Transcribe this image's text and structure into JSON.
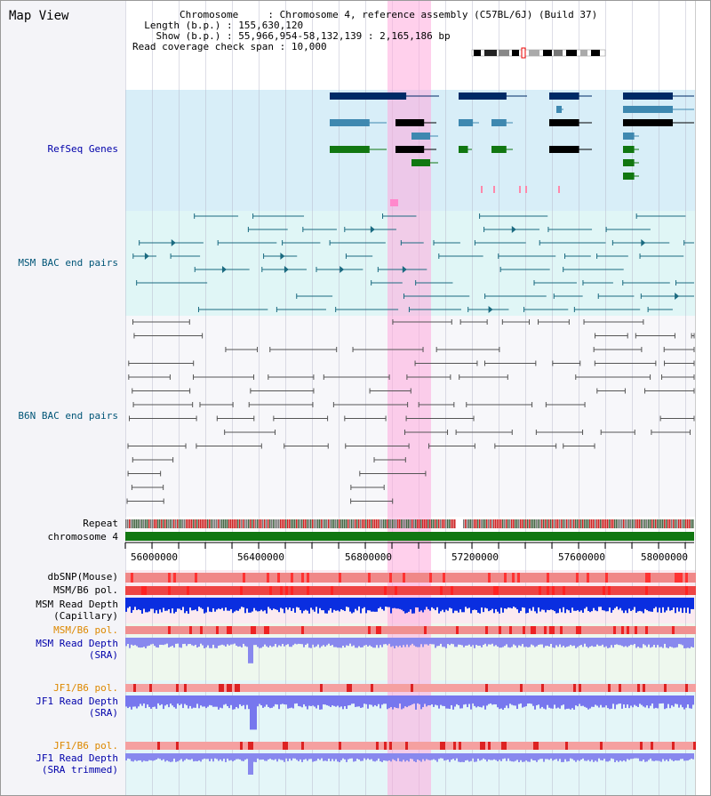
{
  "view": {
    "title": "Map View",
    "info": {
      "chromosome_label": "Chromosome",
      "chromosome_value": "Chromosome 4, reference assembly (C57BL/6J) (Build 37)",
      "length_label": "Length (b.p.)",
      "length_value": "155,630,120",
      "show_label": "Show (b.p.)",
      "show_value": "55,966,954-58,132,139 : 2,165,186 bp",
      "coverage_label": "Read coverage check span",
      "coverage_value": "10,000"
    }
  },
  "tracks": {
    "refseq": "RefSeq Genes",
    "msm_bac": "MSM BAC end pairs",
    "b6n_bac": "B6N BAC end pairs",
    "repeat": "Repeat",
    "chromosome": "chromosome 4",
    "dbsnp": "dbSNP(Mouse)",
    "msm_b6_pol_1": "MSM/B6 pol.",
    "msm_depth_cap_1": "MSM Read Depth",
    "msm_depth_cap_2": "(Capillary)",
    "msm_b6_pol_2": "MSM/B6 pol.",
    "msm_depth_sra_1": "MSM Read Depth",
    "msm_depth_sra_2": "(SRA)",
    "jf1_b6_pol_1": "JF1/B6 pol.",
    "jf1_depth_sra_1": "JF1 Read Depth",
    "jf1_depth_sra_2": "(SRA)",
    "jf1_b6_pol_2": "JF1/B6 pol.",
    "jf1_depth_trim_1": "JF1 Read Depth",
    "jf1_depth_trim_2": "(SRA trimmed)"
  },
  "axis": {
    "ticks": [
      "56000000",
      "56400000",
      "56800000",
      "57200000",
      "57600000",
      "58000000"
    ]
  },
  "colors": {
    "label_blue": "#0000aa",
    "label_orange": "#dd8800",
    "label_teal": "#005577",
    "refseq_dark": "#002a66",
    "refseq_mid": "#3e88b0",
    "refseq_green": "#117711",
    "bac_teal": "#1a6a80",
    "bac_gray": "#555555",
    "chrom_green": "#117711"
  }
}
